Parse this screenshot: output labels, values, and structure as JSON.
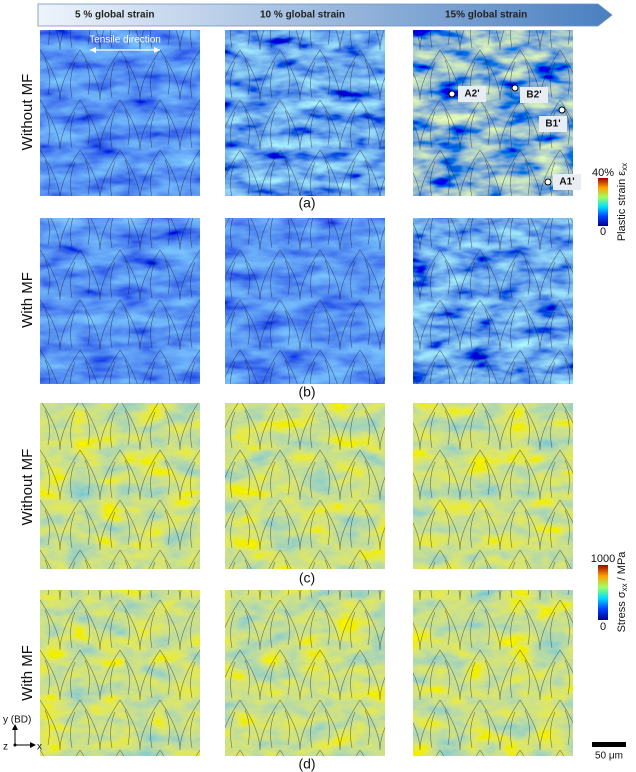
{
  "header": {
    "columns": [
      "5 % global strain",
      "10 % global strain",
      "15% global strain"
    ]
  },
  "rows": [
    {
      "label": "Without MF",
      "caption": "(a)"
    },
    {
      "label": "With MF",
      "caption": "(b)"
    },
    {
      "label": "Without MF",
      "caption": "(c)"
    },
    {
      "label": "With MF",
      "caption": "(d)"
    }
  ],
  "annotations": {
    "tensile_direction": "Tensile direction",
    "points": [
      "A2'",
      "B2'",
      "B1'",
      "A1'"
    ]
  },
  "colorbars": [
    {
      "max": "40%",
      "title": "Plastic strain ε",
      "subscript": "xx",
      "unit": "",
      "min": "0"
    },
    {
      "max": "1000",
      "title": "Stress σ",
      "subscript": "xx",
      "unit": " / MPa",
      "min": "0"
    }
  ],
  "axes": {
    "y": "y (BD)",
    "z": "z",
    "x": "x"
  },
  "scale_bar": "50 μm"
}
